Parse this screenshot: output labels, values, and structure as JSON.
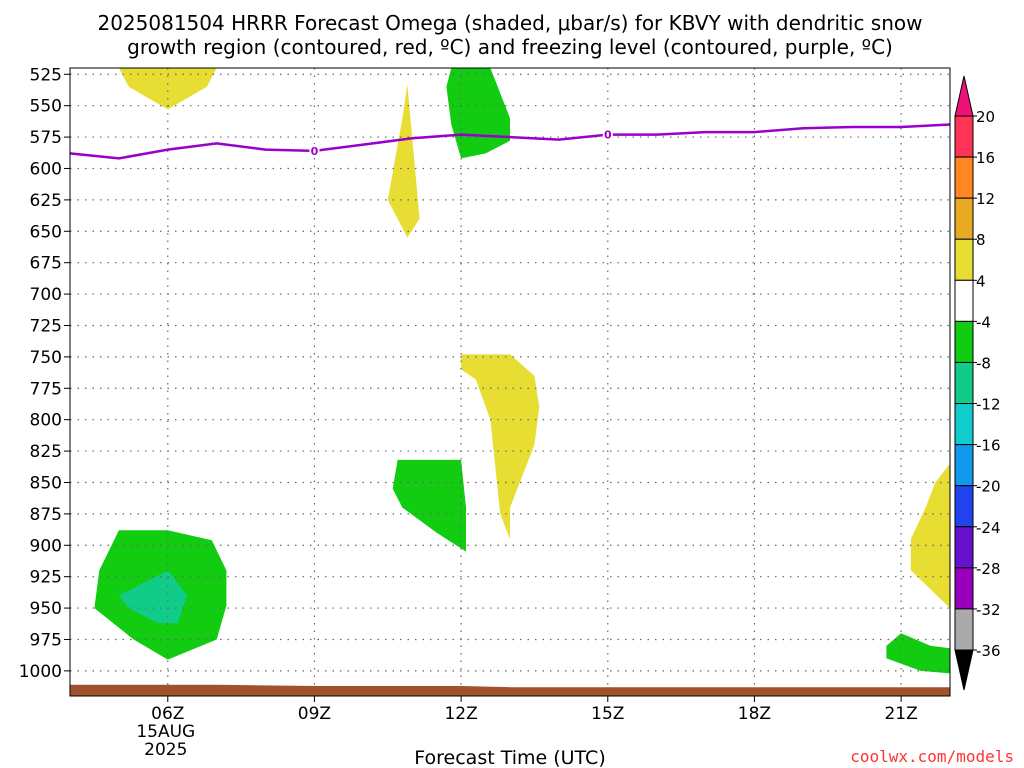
{
  "title_lines": [
    "2025081504 HRRR Forecast Omega (shaded, μbar/s) for KBVY with dendritic snow",
    "growth region (contoured, red, ºC) and freezing level (contoured, purple, ºC)"
  ],
  "credit": "coolwx.com/models",
  "chart_data": {
    "type": "time-height contour",
    "xlabel": "Forecast Time (UTC)",
    "x_start_hour": 4,
    "x_end_hour": 22,
    "x_ticks": [
      {
        "hour": 6,
        "label": "06Z",
        "sub": [
          "15AUG",
          "2025"
        ]
      },
      {
        "hour": 9,
        "label": "09Z"
      },
      {
        "hour": 12,
        "label": "12Z"
      },
      {
        "hour": 15,
        "label": "15Z"
      },
      {
        "hour": 18,
        "label": "18Z"
      },
      {
        "hour": 21,
        "label": "21Z"
      }
    ],
    "y_levels_mb": [
      525,
      550,
      575,
      600,
      625,
      650,
      675,
      700,
      725,
      750,
      775,
      800,
      825,
      850,
      875,
      900,
      925,
      950,
      975,
      1000
    ],
    "y_range_mb": [
      520,
      1020
    ],
    "colorbar": {
      "labels": [
        "20",
        "16",
        "12",
        "8",
        "4",
        "-4",
        "-8",
        "-12",
        "-16",
        "-20",
        "-24",
        "-28",
        "-32",
        "-36"
      ],
      "colors": [
        "#ff3355",
        "#ff8822",
        "#e8aa22",
        "#e8dd33",
        "#ffffff",
        "#11cc11",
        "#11cc88",
        "#11cccc",
        "#1199ee",
        "#2244ee",
        "#6611cc",
        "#9900bb",
        "#aaaaaa"
      ],
      "top_color": "#ee1177",
      "bottom_color": "#000000"
    },
    "shaded_regions": [
      {
        "sign": "positive",
        "bin": "4 to 8",
        "color": "#e8dd33",
        "points": [
          [
            5.0,
            520
          ],
          [
            6.0,
            520
          ],
          [
            7.0,
            520
          ],
          [
            6.8,
            535
          ],
          [
            6.0,
            553
          ],
          [
            5.2,
            535
          ]
        ]
      },
      {
        "sign": "positive",
        "bin": "4 to 8",
        "color": "#e8dd33",
        "points": [
          [
            10.9,
            533
          ],
          [
            11.15,
            640
          ],
          [
            10.9,
            655
          ],
          [
            10.5,
            625
          ],
          [
            10.8,
            560
          ]
        ]
      },
      {
        "sign": "negative",
        "bin": "-4 to -8",
        "color": "#11cc11",
        "points": [
          [
            11.8,
            520
          ],
          [
            12.6,
            520
          ],
          [
            13.0,
            560
          ],
          [
            13.0,
            578
          ],
          [
            12.5,
            588
          ],
          [
            12.0,
            592
          ],
          [
            11.8,
            565
          ],
          [
            11.7,
            535
          ]
        ]
      },
      {
        "sign": "positive",
        "bin": "4 to 8",
        "color": "#e8dd33",
        "points": [
          [
            12.0,
            748
          ],
          [
            13.0,
            748
          ],
          [
            13.5,
            765
          ],
          [
            13.6,
            790
          ],
          [
            13.5,
            820
          ],
          [
            13.0,
            870
          ],
          [
            13.0,
            895
          ],
          [
            12.8,
            875
          ],
          [
            12.6,
            800
          ],
          [
            12.3,
            768
          ],
          [
            12.0,
            760
          ]
        ]
      },
      {
        "sign": "negative",
        "bin": "-4 to -8",
        "color": "#11cc11",
        "points": [
          [
            10.7,
            832
          ],
          [
            12.0,
            832
          ],
          [
            12.1,
            870
          ],
          [
            12.1,
            905
          ],
          [
            11.5,
            890
          ],
          [
            10.8,
            870
          ],
          [
            10.6,
            855
          ]
        ]
      },
      {
        "sign": "negative",
        "bin": "-4 to -8",
        "color": "#11cc11",
        "points": [
          [
            5.0,
            888
          ],
          [
            6.0,
            888
          ],
          [
            6.9,
            896
          ],
          [
            7.2,
            920
          ],
          [
            7.2,
            948
          ],
          [
            7.0,
            975
          ],
          [
            6.0,
            991
          ],
          [
            5.3,
            975
          ],
          [
            4.5,
            950
          ],
          [
            4.6,
            920
          ]
        ]
      },
      {
        "sign": "negative",
        "bin": "-8 to -12",
        "color": "#11cc88",
        "points": [
          [
            6.0,
            920
          ],
          [
            6.4,
            940
          ],
          [
            6.2,
            962
          ],
          [
            5.8,
            962
          ],
          [
            5.2,
            950
          ],
          [
            5.0,
            940
          ]
        ]
      },
      {
        "sign": "positive",
        "bin": "4 to 8",
        "color": "#e8dd33",
        "points": [
          [
            22.0,
            835
          ],
          [
            22.0,
            950
          ],
          [
            21.6,
            935
          ],
          [
            21.2,
            920
          ],
          [
            21.2,
            895
          ],
          [
            21.5,
            870
          ],
          [
            21.7,
            850
          ]
        ]
      },
      {
        "sign": "negative",
        "bin": "-4 to -8",
        "color": "#11cc11",
        "points": [
          [
            21.0,
            970
          ],
          [
            21.6,
            980
          ],
          [
            22.0,
            982
          ],
          [
            22.0,
            1002
          ],
          [
            21.4,
            1000
          ],
          [
            20.7,
            990
          ],
          [
            20.7,
            980
          ]
        ]
      }
    ],
    "freezing_level": {
      "label": "0",
      "color": "#9900cc",
      "label_hours": [
        9.0,
        15.0
      ],
      "points": [
        [
          4.0,
          588
        ],
        [
          4.5,
          590
        ],
        [
          5.0,
          592
        ],
        [
          6.0,
          585
        ],
        [
          7.0,
          580
        ],
        [
          8.0,
          585
        ],
        [
          9.0,
          586
        ],
        [
          10.0,
          581
        ],
        [
          11.0,
          576
        ],
        [
          12.0,
          573
        ],
        [
          13.0,
          575
        ],
        [
          14.0,
          577
        ],
        [
          15.0,
          573
        ],
        [
          16.0,
          573
        ],
        [
          17.0,
          571
        ],
        [
          18.0,
          571
        ],
        [
          19.0,
          568
        ],
        [
          20.0,
          567
        ],
        [
          21.0,
          567
        ],
        [
          22.0,
          565
        ]
      ]
    },
    "terrain": {
      "color": "#a0522d",
      "points": [
        [
          4.0,
          1011
        ],
        [
          7.0,
          1011
        ],
        [
          9.0,
          1012
        ],
        [
          12.0,
          1012
        ],
        [
          13.0,
          1013
        ],
        [
          22.0,
          1013
        ]
      ]
    }
  }
}
